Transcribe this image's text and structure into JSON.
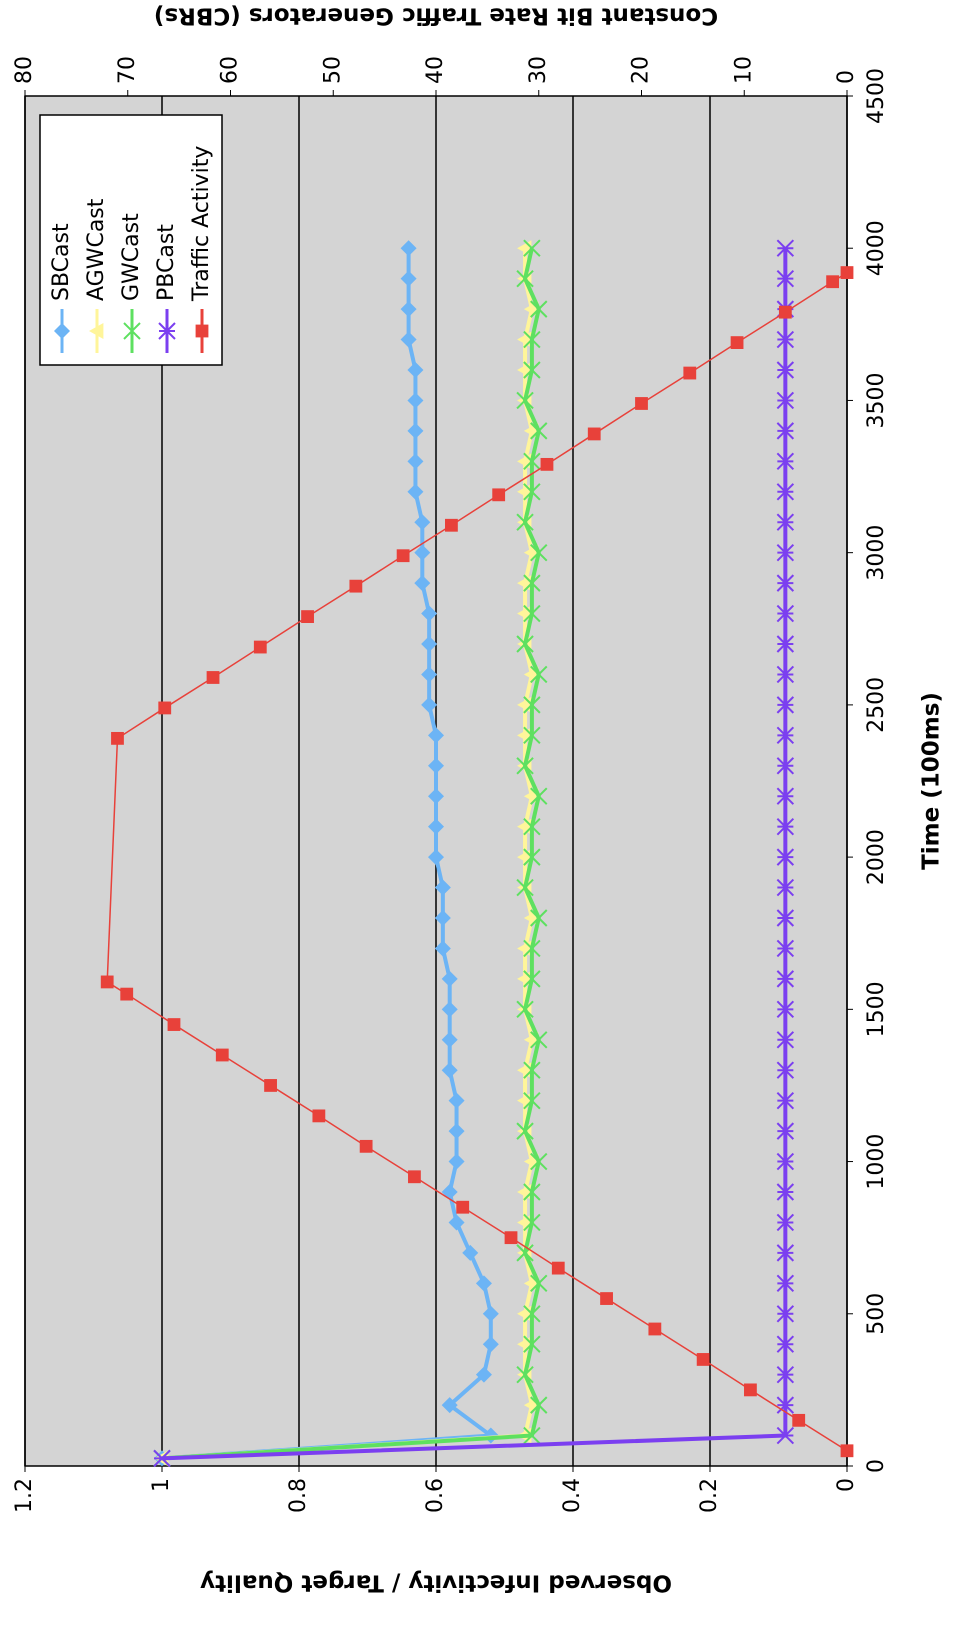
{
  "chart_data": {
    "type": "line",
    "xlabel": "Time (100ms)",
    "ylabel": "Observed Infectivity / Target Quality",
    "y2label": "Constant Bit Rate Traffic Generators (CBRs)",
    "xlim": [
      0,
      4500
    ],
    "xticks": [
      0,
      500,
      1000,
      1500,
      2000,
      2500,
      3000,
      3500,
      4000,
      4500
    ],
    "ylim": [
      0,
      1.2
    ],
    "yticks": [
      0,
      0.2,
      0.4,
      0.6,
      0.8,
      1,
      1.2
    ],
    "y2lim": [
      0,
      80
    ],
    "y2ticks": [
      0,
      10,
      20,
      30,
      40,
      50,
      60,
      70,
      80
    ],
    "grid": true,
    "legend": "upper left",
    "series": [
      {
        "name": "SBCast",
        "color": "#6cb4f5",
        "marker": "diamond",
        "x": [
          25,
          100,
          200,
          300,
          400,
          500,
          600,
          700,
          800,
          900,
          1000,
          1100,
          1200,
          1300,
          1400,
          1500,
          1600,
          1700,
          1800,
          1900,
          2000,
          2100,
          2200,
          2300,
          2400,
          2500,
          2600,
          2700,
          2800,
          2900,
          3000,
          3100,
          3200,
          3300,
          3400,
          3500,
          3600,
          3700,
          3800,
          3900,
          4000
        ],
        "values": [
          1,
          0.52,
          0.58,
          0.53,
          0.52,
          0.52,
          0.53,
          0.55,
          0.57,
          0.58,
          0.57,
          0.57,
          0.57,
          0.58,
          0.58,
          0.58,
          0.58,
          0.59,
          0.59,
          0.59,
          0.6,
          0.6,
          0.6,
          0.6,
          0.6,
          0.61,
          0.61,
          0.61,
          0.61,
          0.62,
          0.62,
          0.62,
          0.63,
          0.63,
          0.63,
          0.63,
          0.63,
          0.64,
          0.64,
          0.64,
          0.64
        ]
      },
      {
        "name": "AGWCast",
        "color": "#fff59a",
        "marker": "triangle",
        "x": [
          25,
          100,
          200,
          300,
          400,
          500,
          600,
          700,
          800,
          900,
          1000,
          1100,
          1200,
          1300,
          1400,
          1500,
          1600,
          1700,
          1800,
          1900,
          2000,
          2100,
          2200,
          2300,
          2400,
          2500,
          2600,
          2700,
          2800,
          2900,
          3000,
          3100,
          3200,
          3300,
          3400,
          3500,
          3600,
          3700,
          3800,
          3900,
          4000
        ],
        "values": [
          1,
          0.47,
          0.46,
          0.47,
          0.47,
          0.47,
          0.46,
          0.47,
          0.47,
          0.47,
          0.46,
          0.47,
          0.47,
          0.47,
          0.46,
          0.47,
          0.47,
          0.47,
          0.46,
          0.47,
          0.47,
          0.47,
          0.46,
          0.47,
          0.47,
          0.47,
          0.46,
          0.47,
          0.47,
          0.47,
          0.46,
          0.47,
          0.47,
          0.47,
          0.46,
          0.47,
          0.47,
          0.47,
          0.46,
          0.47,
          0.47
        ]
      },
      {
        "name": "GWCast",
        "color": "#5ee060",
        "marker": "x",
        "x": [
          25,
          100,
          200,
          300,
          400,
          500,
          600,
          700,
          800,
          900,
          1000,
          1100,
          1200,
          1300,
          1400,
          1500,
          1600,
          1700,
          1800,
          1900,
          2000,
          2100,
          2200,
          2300,
          2400,
          2500,
          2600,
          2700,
          2800,
          2900,
          3000,
          3100,
          3200,
          3300,
          3400,
          3500,
          3600,
          3700,
          3800,
          3900,
          4000
        ],
        "values": [
          1,
          0.46,
          0.45,
          0.47,
          0.46,
          0.46,
          0.45,
          0.47,
          0.46,
          0.46,
          0.45,
          0.47,
          0.46,
          0.46,
          0.45,
          0.47,
          0.46,
          0.46,
          0.45,
          0.47,
          0.46,
          0.46,
          0.45,
          0.47,
          0.46,
          0.46,
          0.45,
          0.47,
          0.46,
          0.46,
          0.45,
          0.47,
          0.46,
          0.46,
          0.45,
          0.47,
          0.46,
          0.46,
          0.45,
          0.47,
          0.46
        ]
      },
      {
        "name": "PBCast",
        "color": "#7b3ff0",
        "marker": "star",
        "x": [
          25,
          100,
          200,
          300,
          400,
          500,
          600,
          700,
          800,
          900,
          1000,
          1100,
          1200,
          1300,
          1400,
          1500,
          1600,
          1700,
          1800,
          1900,
          2000,
          2100,
          2200,
          2300,
          2400,
          2500,
          2600,
          2700,
          2800,
          2900,
          3000,
          3100,
          3200,
          3300,
          3400,
          3500,
          3600,
          3700,
          3800,
          3900,
          4000
        ],
        "values": [
          1,
          0.09,
          0.09,
          0.09,
          0.09,
          0.09,
          0.09,
          0.09,
          0.09,
          0.09,
          0.09,
          0.09,
          0.09,
          0.09,
          0.09,
          0.09,
          0.09,
          0.09,
          0.09,
          0.09,
          0.09,
          0.09,
          0.09,
          0.09,
          0.09,
          0.09,
          0.09,
          0.09,
          0.09,
          0.09,
          0.09,
          0.09,
          0.09,
          0.09,
          0.09,
          0.09,
          0.09,
          0.09,
          0.09,
          0.09,
          0.09
        ]
      },
      {
        "name": "Traffic Activity",
        "color": "#e8413a",
        "marker": "square",
        "axis": "y2",
        "x": [
          50,
          150,
          250,
          350,
          450,
          550,
          650,
          750,
          850,
          950,
          1050,
          1150,
          1250,
          1350,
          1450,
          1550,
          1590,
          2390,
          2490,
          2590,
          2690,
          2790,
          2890,
          2990,
          3090,
          3190,
          3290,
          3390,
          3490,
          3590,
          3690,
          3790,
          3890,
          3920
        ],
        "values": [
          0,
          4.7,
          9.4,
          14.0,
          18.7,
          23.4,
          28.1,
          32.7,
          37.4,
          42.1,
          46.8,
          51.4,
          56.1,
          60.8,
          65.5,
          70.1,
          72,
          71.0,
          66.4,
          61.7,
          57.1,
          52.5,
          47.8,
          43.2,
          38.5,
          33.9,
          29.2,
          24.6,
          20.0,
          15.3,
          10.7,
          6.0,
          1.4,
          0
        ]
      }
    ]
  }
}
